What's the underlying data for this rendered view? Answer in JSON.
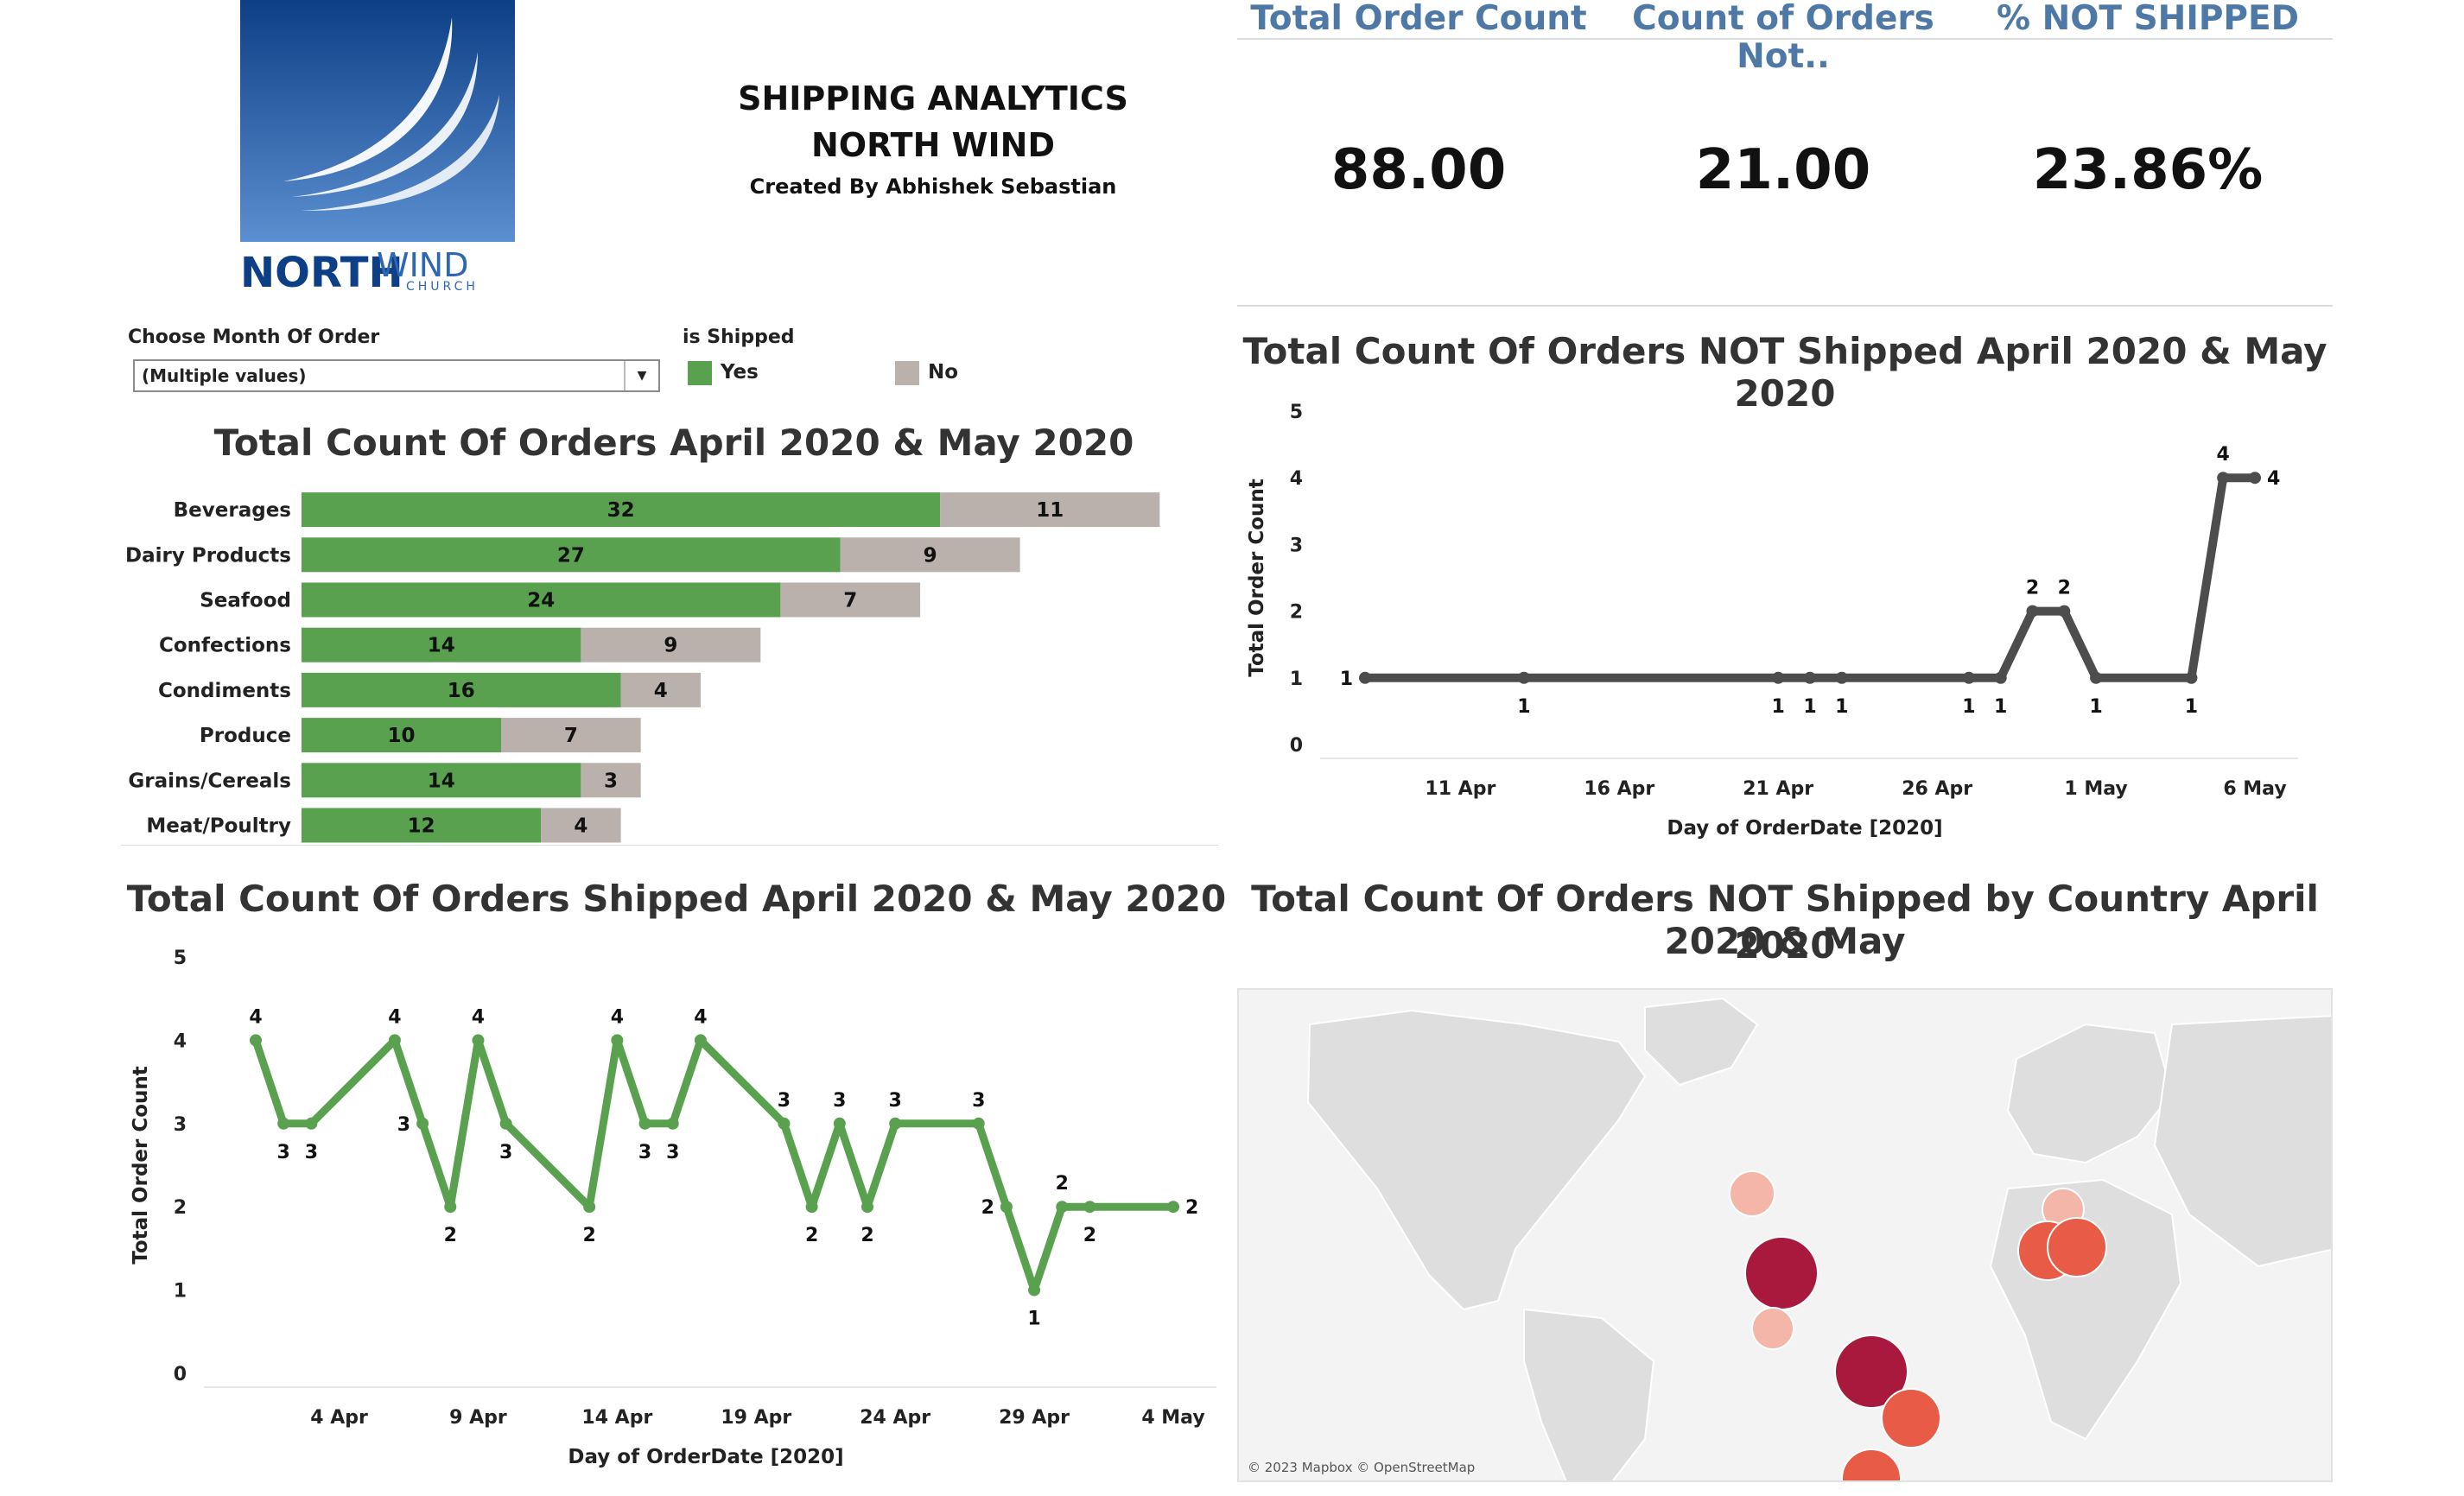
{
  "header": {
    "title_line1": "SHIPPING ANALYTICS",
    "title_line2": "NORTH WIND",
    "creator": "Created By Abhishek Sebastian",
    "logo_text_main": "NORTH",
    "logo_text_wind": "WIND",
    "logo_text_sub": "CHURCH"
  },
  "kpis": [
    {
      "label": "Total Order Count",
      "value": "88.00"
    },
    {
      "label": "Count of Orders Not..",
      "value": "21.00"
    },
    {
      "label": "% NOT SHIPPED",
      "value": "23.86%"
    }
  ],
  "filters": {
    "month_label": "Choose Month Of Order",
    "month_value": "(Multiple values)",
    "shipped_label": "is Shipped",
    "legend": [
      {
        "label": "Yes",
        "color": "#59a14f"
      },
      {
        "label": "No",
        "color": "#bab0ac"
      }
    ]
  },
  "colors": {
    "yes": "#59a14f",
    "no": "#bab0ac",
    "line_not_shipped": "#4d4d4d",
    "kpi_header": "#4e79a7"
  },
  "map": {
    "title_line1": "Total Count Of Orders NOT Shipped  by Country April 2020 & May",
    "title_line2": "2020",
    "credit": "© 2023 Mapbox © OpenStreetMap"
  },
  "chart_data": [
    {
      "id": "orders_by_category",
      "type": "bar",
      "orientation": "horizontal",
      "stacked": true,
      "title": "Total Count Of Orders April 2020 & May 2020",
      "categories": [
        "Beverages",
        "Dairy Products",
        "Seafood",
        "Confections",
        "Condiments",
        "Produce",
        "Grains/Cereals",
        "Meat/Poultry"
      ],
      "series": [
        {
          "name": "Yes",
          "values": [
            32,
            27,
            24,
            14,
            16,
            10,
            14,
            12
          ]
        },
        {
          "name": "No",
          "values": [
            11,
            9,
            7,
            9,
            4,
            7,
            3,
            4
          ]
        }
      ]
    },
    {
      "id": "not_shipped_by_day",
      "type": "line",
      "title": "Total Count Of Orders  NOT Shipped April 2020 & May 2020",
      "xlabel": "Day of OrderDate [2020]",
      "ylabel": "Total Order Count",
      "ylim": [
        0,
        5
      ],
      "yticks": [
        "0",
        "1",
        "2",
        "3",
        "4",
        "5"
      ],
      "xticks": [
        "11 Apr",
        "16 Apr",
        "21 Apr",
        "26 Apr",
        "1 May",
        "6 May"
      ],
      "xtick_days": [
        11,
        16,
        21,
        26,
        31,
        36
      ],
      "x_days": [
        8,
        13,
        21,
        22,
        23,
        27,
        28,
        29,
        30,
        31,
        34,
        35,
        36
      ],
      "values": [
        1,
        1,
        1,
        1,
        1,
        1,
        1,
        2,
        2,
        1,
        1,
        4,
        4
      ],
      "labels": [
        "1",
        "1",
        "1",
        "1",
        "1",
        "1",
        "1",
        "2",
        "2",
        "1",
        "1",
        "4",
        "4"
      ],
      "label_pos": [
        "left",
        "below",
        "below",
        "below",
        "below",
        "below",
        "below",
        "above",
        "above",
        "below",
        "below",
        "above",
        "right"
      ]
    },
    {
      "id": "shipped_by_day",
      "type": "line",
      "title": "Total Count Of Orders Shipped April 2020 & May 2020",
      "xlabel": "Day of OrderDate [2020]",
      "ylabel": "Total Order Count",
      "ylim": [
        0,
        5
      ],
      "yticks": [
        "0",
        "1",
        "2",
        "3",
        "4",
        "5"
      ],
      "xticks": [
        "4 Apr",
        "9 Apr",
        "14 Apr",
        "19 Apr",
        "24 Apr",
        "29 Apr",
        "4 May"
      ],
      "xtick_days": [
        4,
        9,
        14,
        19,
        24,
        29,
        34
      ],
      "x_days": [
        1,
        2,
        3,
        6,
        7,
        8,
        9,
        10,
        13,
        14,
        15,
        16,
        17,
        20,
        21,
        22,
        23,
        24,
        27,
        28,
        29,
        30,
        31,
        34
      ],
      "values": [
        4,
        3,
        3,
        4,
        3,
        2,
        4,
        3,
        2,
        4,
        3,
        3,
        4,
        3,
        2,
        3,
        2,
        3,
        3,
        2,
        1,
        2,
        2,
        2
      ],
      "labels": [
        "4",
        "3",
        "3",
        "4",
        "3",
        "2",
        "4",
        "3",
        "2",
        "4",
        "3",
        "3",
        "4",
        "3",
        "2",
        "3",
        "2",
        "3",
        "3",
        "2",
        "1",
        "2",
        "2",
        "2"
      ],
      "label_pos": [
        "above",
        "below",
        "below",
        "above",
        "left",
        "below",
        "above",
        "below",
        "below",
        "above",
        "below",
        "below",
        "above",
        "above",
        "below",
        "above",
        "below",
        "above",
        "above",
        "left",
        "below",
        "above",
        "below",
        "right"
      ]
    }
  ],
  "map_points": [
    {
      "region": "Canada",
      "value": 1,
      "color": "#f4b6a8"
    },
    {
      "region": "USA",
      "value": 4,
      "color": "#a8193d"
    },
    {
      "region": "Mexico",
      "value": 1,
      "color": "#f4b6a8"
    },
    {
      "region": "Venezuela",
      "value": 4,
      "color": "#a8193d"
    },
    {
      "region": "Brazil",
      "value": 2,
      "color": "#e75b47"
    },
    {
      "region": "Argentina",
      "value": 2,
      "color": "#e75b47"
    },
    {
      "region": "UK",
      "value": 1,
      "color": "#f4b6a8"
    },
    {
      "region": "France",
      "value": 2,
      "color": "#e75b47"
    },
    {
      "region": "Germany",
      "value": 2,
      "color": "#e75b47"
    }
  ]
}
